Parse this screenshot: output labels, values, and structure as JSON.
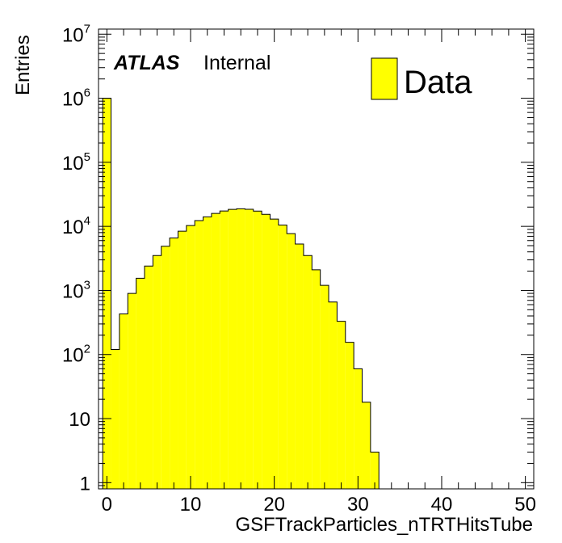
{
  "chart_data": {
    "type": "bar",
    "subtype": "histogram",
    "log_scale_y": true,
    "xlabel": "GSFTrackParticles_nTRTHitsTube",
    "ylabel": "Entries",
    "xlim": [
      -1,
      51
    ],
    "ylim": [
      0.8,
      12000000
    ],
    "bin_width": 1,
    "x_ticks": [
      "0",
      "10",
      "20",
      "30",
      "40",
      "50"
    ],
    "y_ticks": [
      {
        "value": 1,
        "base": "1",
        "exp": ""
      },
      {
        "value": 10,
        "base": "10",
        "exp": ""
      },
      {
        "value": 100,
        "base": "10",
        "exp": "2"
      },
      {
        "value": 1000,
        "base": "10",
        "exp": "3"
      },
      {
        "value": 10000,
        "base": "10",
        "exp": "4"
      },
      {
        "value": 100000,
        "base": "10",
        "exp": "5"
      },
      {
        "value": 1000000,
        "base": "10",
        "exp": "6"
      },
      {
        "value": 10000000,
        "base": "10",
        "exp": "7"
      }
    ],
    "series": [
      {
        "name": "Data",
        "color": "#ffff00",
        "edge_color": "#000000",
        "bins": [
          {
            "x": 0,
            "value": 1000000
          },
          {
            "x": 1,
            "value": 120
          },
          {
            "x": 2,
            "value": 430
          },
          {
            "x": 3,
            "value": 900
          },
          {
            "x": 4,
            "value": 1550
          },
          {
            "x": 5,
            "value": 2400
          },
          {
            "x": 6,
            "value": 3500
          },
          {
            "x": 7,
            "value": 4900
          },
          {
            "x": 8,
            "value": 6600
          },
          {
            "x": 9,
            "value": 8400
          },
          {
            "x": 10,
            "value": 10300
          },
          {
            "x": 11,
            "value": 12300
          },
          {
            "x": 12,
            "value": 14100
          },
          {
            "x": 13,
            "value": 15900
          },
          {
            "x": 14,
            "value": 17400
          },
          {
            "x": 15,
            "value": 18400
          },
          {
            "x": 16,
            "value": 18800
          },
          {
            "x": 17,
            "value": 18500
          },
          {
            "x": 18,
            "value": 17300
          },
          {
            "x": 19,
            "value": 15400
          },
          {
            "x": 20,
            "value": 13000
          },
          {
            "x": 21,
            "value": 10500
          },
          {
            "x": 22,
            "value": 7700
          },
          {
            "x": 23,
            "value": 5300
          },
          {
            "x": 24,
            "value": 3500
          },
          {
            "x": 25,
            "value": 2100
          },
          {
            "x": 26,
            "value": 1200
          },
          {
            "x": 27,
            "value": 660
          },
          {
            "x": 28,
            "value": 330
          },
          {
            "x": 29,
            "value": 155
          },
          {
            "x": 30,
            "value": 60
          },
          {
            "x": 31,
            "value": 18
          },
          {
            "x": 32,
            "value": 3
          }
        ]
      }
    ]
  },
  "atlas_label": "ATLAS",
  "status_label": "Internal",
  "legend": {
    "entry": "Data",
    "position": "top-right"
  }
}
